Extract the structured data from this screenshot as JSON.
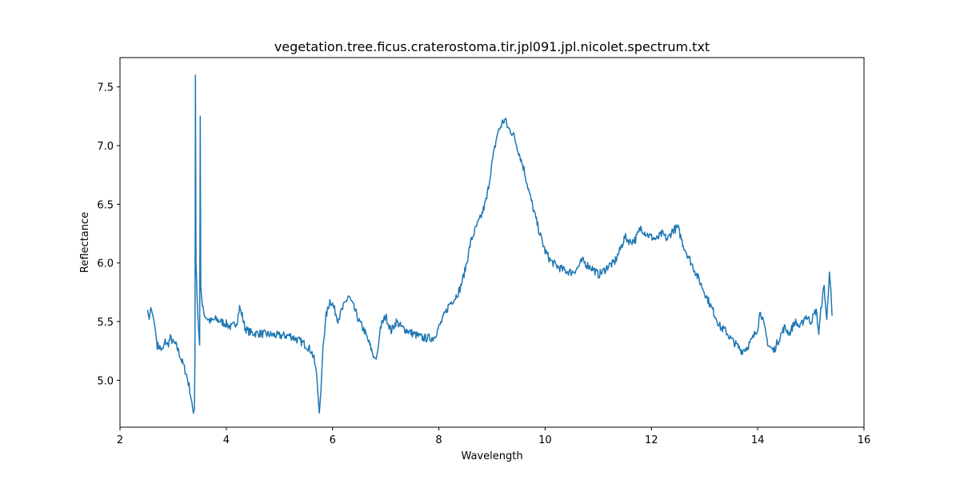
{
  "chart_data": {
    "type": "line",
    "title": "vegetation.tree.ficus.craterostoma.tir.jpl091.jpl.nicolet.spectrum.txt",
    "xlabel": "Wavelength",
    "ylabel": "Reflectance",
    "xlim": [
      2.0,
      16.0
    ],
    "ylim": [
      4.6,
      7.75
    ],
    "xticks": [
      2,
      4,
      6,
      8,
      10,
      12,
      14,
      16
    ],
    "xtick_labels": [
      "2",
      "4",
      "6",
      "8",
      "10",
      "12",
      "14",
      "16"
    ],
    "yticks": [
      5.0,
      5.5,
      6.0,
      6.5,
      7.0,
      7.5
    ],
    "ytick_labels": [
      "5.0",
      "5.5",
      "6.0",
      "6.5",
      "7.0",
      "7.5"
    ],
    "grid": false,
    "line_color": "#1f77b4",
    "series": [
      {
        "x": [
          2.52,
          2.55,
          2.58,
          2.62,
          2.66,
          2.7,
          2.75,
          2.8,
          2.85,
          2.9,
          2.95,
          3.0,
          3.05,
          3.1,
          3.15,
          3.2,
          3.25,
          3.3,
          3.35,
          3.38,
          3.4,
          3.41,
          3.42,
          3.43,
          3.45,
          3.47,
          3.49,
          3.5,
          3.51,
          3.52,
          3.55,
          3.6,
          3.7,
          3.8,
          3.9,
          4.0,
          4.1,
          4.2,
          4.25,
          4.3,
          4.35,
          4.4,
          4.5,
          4.6,
          4.8,
          5.0,
          5.2,
          5.4,
          5.5,
          5.6,
          5.65,
          5.7,
          5.73,
          5.75,
          5.78,
          5.82,
          5.88,
          5.95,
          6.0,
          6.1,
          6.2,
          6.3,
          6.4,
          6.5,
          6.6,
          6.7,
          6.78,
          6.82,
          6.86,
          6.9,
          7.0,
          7.1,
          7.2,
          7.3,
          7.5,
          7.7,
          7.9,
          8.0,
          8.1,
          8.2,
          8.3,
          8.4,
          8.5,
          8.6,
          8.7,
          8.8,
          8.9,
          9.0,
          9.1,
          9.2,
          9.25,
          9.3,
          9.4,
          9.5,
          9.6,
          9.7,
          9.8,
          9.9,
          10.0,
          10.1,
          10.2,
          10.3,
          10.4,
          10.5,
          10.6,
          10.7,
          10.8,
          10.9,
          11.0,
          11.1,
          11.2,
          11.3,
          11.4,
          11.5,
          11.6,
          11.7,
          11.8,
          11.9,
          12.0,
          12.1,
          12.2,
          12.3,
          12.4,
          12.5,
          12.6,
          12.7,
          12.8,
          12.9,
          13.0,
          13.1,
          13.2,
          13.3,
          13.4,
          13.5,
          13.6,
          13.7,
          13.8,
          13.9,
          14.0,
          14.05,
          14.1,
          14.2,
          14.3,
          14.4,
          14.5,
          14.6,
          14.7,
          14.8,
          14.9,
          15.0,
          15.1,
          15.15,
          15.2,
          15.25,
          15.3,
          15.35,
          15.4
        ],
        "values": [
          5.6,
          5.52,
          5.62,
          5.55,
          5.45,
          5.3,
          5.28,
          5.25,
          5.33,
          5.3,
          5.36,
          5.32,
          5.3,
          5.25,
          5.18,
          5.12,
          5.05,
          4.95,
          4.82,
          4.72,
          4.75,
          5.2,
          7.6,
          6.0,
          5.72,
          5.5,
          5.35,
          5.3,
          7.25,
          5.8,
          5.62,
          5.55,
          5.5,
          5.52,
          5.5,
          5.48,
          5.45,
          5.5,
          5.62,
          5.55,
          5.45,
          5.42,
          5.4,
          5.4,
          5.39,
          5.38,
          5.38,
          5.33,
          5.3,
          5.25,
          5.18,
          5.05,
          4.85,
          4.72,
          4.9,
          5.3,
          5.55,
          5.68,
          5.65,
          5.52,
          5.62,
          5.72,
          5.62,
          5.5,
          5.42,
          5.3,
          5.2,
          5.18,
          5.28,
          5.45,
          5.55,
          5.42,
          5.5,
          5.45,
          5.4,
          5.36,
          5.36,
          5.45,
          5.55,
          5.65,
          5.7,
          5.78,
          5.95,
          6.18,
          6.3,
          6.4,
          6.55,
          6.85,
          7.1,
          7.2,
          7.22,
          7.15,
          7.1,
          6.95,
          6.8,
          6.6,
          6.42,
          6.25,
          6.1,
          6.02,
          5.98,
          5.95,
          5.93,
          5.92,
          5.95,
          6.02,
          5.98,
          5.95,
          5.9,
          5.93,
          5.98,
          6.0,
          6.1,
          6.22,
          6.18,
          6.2,
          6.3,
          6.25,
          6.22,
          6.2,
          6.25,
          6.2,
          6.28,
          6.3,
          6.15,
          6.05,
          5.95,
          5.85,
          5.75,
          5.65,
          5.55,
          5.45,
          5.42,
          5.35,
          5.3,
          5.25,
          5.28,
          5.35,
          5.45,
          5.6,
          5.5,
          5.3,
          5.25,
          5.35,
          5.45,
          5.4,
          5.5,
          5.45,
          5.55,
          5.5,
          5.6,
          5.4,
          5.65,
          5.8,
          5.5,
          5.95,
          5.55
        ],
        "noise": 0.035
      }
    ]
  }
}
